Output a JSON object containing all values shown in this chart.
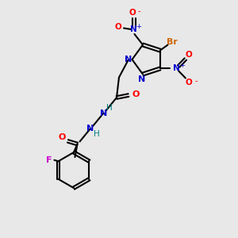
{
  "bg_color": "#e8e8e8",
  "atom_colors": {
    "N": "#0000cc",
    "O": "#ff0000",
    "F": "#cc00cc",
    "Br": "#cc6600",
    "C": "#000000",
    "H": "#008080"
  },
  "bond_color": "#000000",
  "bond_width": 1.5
}
